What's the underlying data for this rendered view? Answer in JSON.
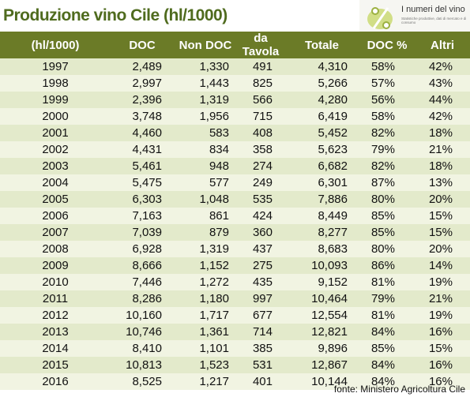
{
  "header": {
    "title": "Produzione vino Cile (hl/1000)",
    "logo_title": "I numeri del vino",
    "logo_tagline": "Statistiche produttive, dati di mercato e di consumo"
  },
  "table": {
    "columns": [
      "(hl/1000)",
      "DOC",
      "Non DOC",
      "da Tavola",
      "Totale",
      "DOC %",
      "Altri"
    ],
    "rows": [
      [
        "1997",
        "2,489",
        "1,330",
        "491",
        "4,310",
        "58%",
        "42%"
      ],
      [
        "1998",
        "2,997",
        "1,443",
        "825",
        "5,266",
        "57%",
        "43%"
      ],
      [
        "1999",
        "2,396",
        "1,319",
        "566",
        "4,280",
        "56%",
        "44%"
      ],
      [
        "2000",
        "3,748",
        "1,956",
        "715",
        "6,419",
        "58%",
        "42%"
      ],
      [
        "2001",
        "4,460",
        "583",
        "408",
        "5,452",
        "82%",
        "18%"
      ],
      [
        "2002",
        "4,431",
        "834",
        "358",
        "5,623",
        "79%",
        "21%"
      ],
      [
        "2003",
        "5,461",
        "948",
        "274",
        "6,682",
        "82%",
        "18%"
      ],
      [
        "2004",
        "5,475",
        "577",
        "249",
        "6,301",
        "87%",
        "13%"
      ],
      [
        "2005",
        "6,303",
        "1,048",
        "535",
        "7,886",
        "80%",
        "20%"
      ],
      [
        "2006",
        "7,163",
        "861",
        "424",
        "8,449",
        "85%",
        "15%"
      ],
      [
        "2007",
        "7,039",
        "879",
        "360",
        "8,277",
        "85%",
        "15%"
      ],
      [
        "2008",
        "6,928",
        "1,319",
        "437",
        "8,683",
        "80%",
        "20%"
      ],
      [
        "2009",
        "8,666",
        "1,152",
        "275",
        "10,093",
        "86%",
        "14%"
      ],
      [
        "2010",
        "7,446",
        "1,272",
        "435",
        "9,152",
        "81%",
        "19%"
      ],
      [
        "2011",
        "8,286",
        "1,180",
        "997",
        "10,464",
        "79%",
        "21%"
      ],
      [
        "2012",
        "10,160",
        "1,717",
        "677",
        "12,554",
        "81%",
        "19%"
      ],
      [
        "2013",
        "10,746",
        "1,361",
        "714",
        "12,821",
        "84%",
        "16%"
      ],
      [
        "2014",
        "8,410",
        "1,101",
        "385",
        "9,896",
        "85%",
        "15%"
      ],
      [
        "2015",
        "10,813",
        "1,523",
        "531",
        "12,867",
        "84%",
        "16%"
      ],
      [
        "2016",
        "8,525",
        "1,217",
        "401",
        "10,144",
        "84%",
        "16%"
      ]
    ]
  },
  "footer": {
    "source": "fonte: Ministero Agricoltura Cile"
  }
}
